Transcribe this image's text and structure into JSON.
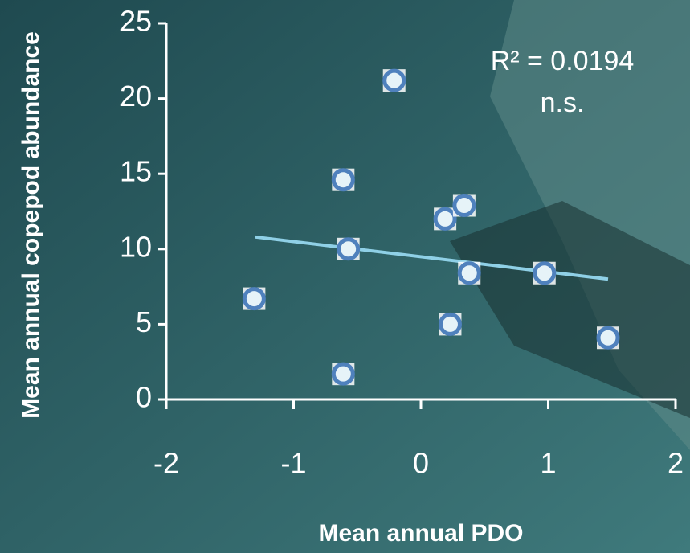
{
  "chart_data": {
    "type": "scatter",
    "xlabel": "Mean annual PDO",
    "ylabel": "Mean annual copepod abundance",
    "annotations": [
      "R² = 0.0194",
      "n.s."
    ],
    "x": [
      -1.31,
      -0.61,
      -0.61,
      -0.57,
      -0.21,
      0.19,
      0.34,
      0.38,
      0.23,
      0.97,
      1.47
    ],
    "values": [
      6.7,
      1.7,
      14.6,
      10.0,
      21.2,
      12.0,
      12.9,
      8.4,
      5.0,
      8.4,
      4.1
    ],
    "color": "#4f81bd",
    "trendline": {
      "x": [
        -1.3,
        1.47
      ],
      "values": [
        10.8,
        8.0
      ],
      "color": "#8fd0e6"
    },
    "xlim": [
      -2,
      2
    ],
    "xticks": [
      -2,
      -1,
      0,
      1,
      2
    ],
    "ylim": [
      0,
      25
    ],
    "yticks": [
      0,
      5,
      10,
      15,
      20,
      25
    ]
  }
}
